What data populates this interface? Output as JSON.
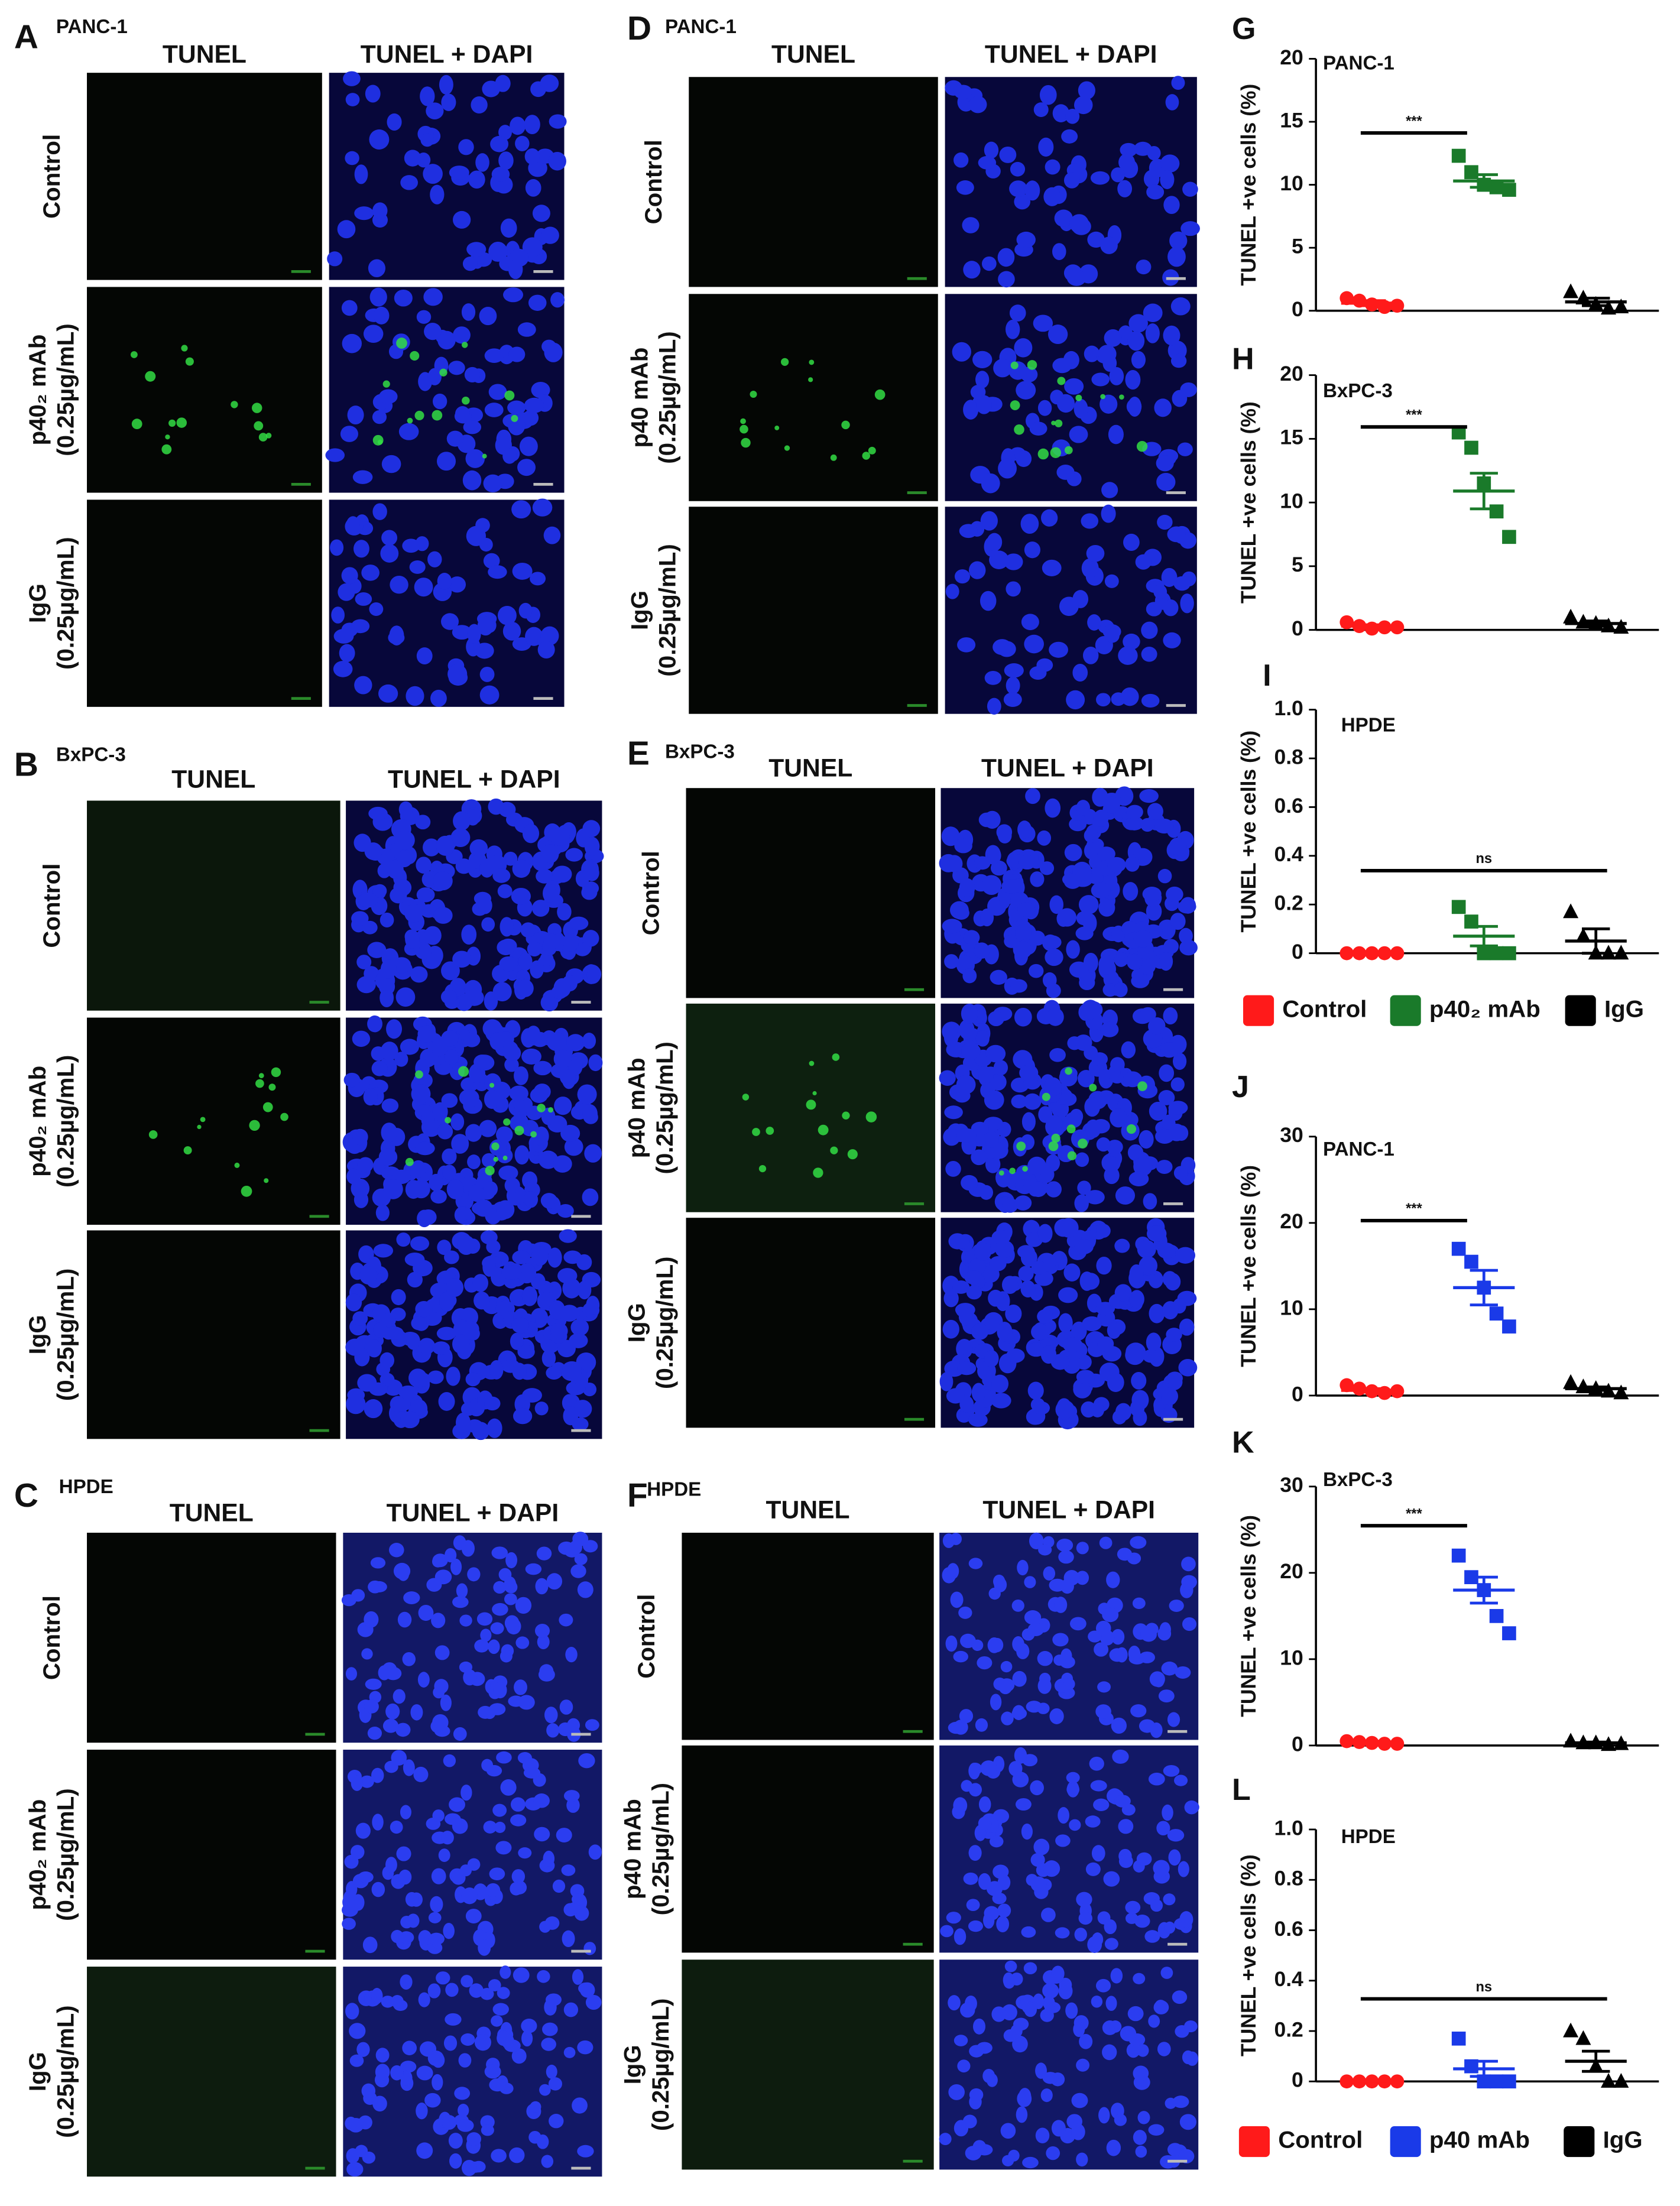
{
  "figure_panels": [
    {
      "letter": "A",
      "cell_line": "PANC-1",
      "columns": [
        "TUNEL",
        "TUNEL  + DAPI"
      ],
      "rows": [
        [
          "Control"
        ],
        [
          "p40₂ mAb",
          "(0.25µg/mL)"
        ],
        [
          "IgG",
          "(0.25µg/mL)"
        ]
      ]
    },
    {
      "letter": "B",
      "cell_line": "BxPC-3",
      "columns": [
        "TUNEL",
        "TUNEL  + DAPI"
      ],
      "rows": [
        [
          "Control"
        ],
        [
          "p40₂ mAb",
          "(0.25µg/mL)"
        ],
        [
          "IgG",
          "(0.25µg/mL)"
        ]
      ]
    },
    {
      "letter": "C",
      "cell_line": "HPDE",
      "columns": [
        "TUNEL",
        "TUNEL  + DAPI"
      ],
      "rows": [
        [
          "Control"
        ],
        [
          "p40₂ mAb",
          "(0.25µg/mL)"
        ],
        [
          "IgG",
          "(0.25µg/mL)"
        ]
      ]
    },
    {
      "letter": "D",
      "cell_line": "PANC-1",
      "columns": [
        "TUNEL",
        "TUNEL  + DAPI"
      ],
      "rows": [
        [
          "Control"
        ],
        [
          "p40 mAb",
          "(0.25µg/mL)"
        ],
        [
          "IgG",
          "(0.25µg/mL)"
        ]
      ]
    },
    {
      "letter": "E",
      "cell_line": "BxPC-3",
      "columns": [
        "TUNEL",
        "TUNEL  + DAPI"
      ],
      "rows": [
        [
          "Control"
        ],
        [
          "p40 mAb",
          "(0.25µg/mL)"
        ],
        [
          "IgG",
          "(0.25µg/mL)"
        ]
      ]
    },
    {
      "letter": "F",
      "cell_line": "HPDE",
      "columns": [
        "TUNEL",
        "TUNEL  + DAPI"
      ],
      "rows": [
        [
          "Control"
        ],
        [
          "p40 mAb",
          "(0.25µg/mL)"
        ],
        [
          "IgG",
          "(0.25µg/mL)"
        ]
      ]
    }
  ],
  "chart_data": [
    {
      "type": "scatter",
      "title": "G",
      "subtitle": "PANC-1",
      "ylabel": "TUNEL  +ve cells (%)",
      "ylim": [
        0,
        20
      ],
      "yticks": [
        0,
        5,
        10,
        15,
        20
      ],
      "annotation": "***",
      "series": [
        {
          "color": "#ff1a1a",
          "marker": "circle",
          "values": [
            1.0,
            0.8,
            0.5,
            0.3,
            0.4
          ],
          "mean": 0.6,
          "sem": 0.2
        },
        {
          "color": "#1a7a2a",
          "marker": "square",
          "values": [
            12.3,
            11.0,
            10.0,
            9.8,
            9.6
          ],
          "mean": 10.3,
          "sem": 0.5
        },
        {
          "color": "#000000",
          "marker": "triangle",
          "values": [
            1.5,
            1.0,
            0.5,
            0.2,
            0.3
          ],
          "mean": 0.7,
          "sem": 0.3
        }
      ]
    },
    {
      "type": "scatter",
      "title": "H",
      "subtitle": "BxPC-3",
      "ylabel": "TUNEL  +ve cells (%)",
      "ylim": [
        0,
        20
      ],
      "yticks": [
        0,
        5,
        10,
        15,
        20
      ],
      "annotation": "***",
      "series": [
        {
          "color": "#ff1a1a",
          "marker": "circle",
          "values": [
            0.6,
            0.3,
            0.1,
            0.2,
            0.2
          ],
          "mean": 0.3,
          "sem": 0.1
        },
        {
          "color": "#1a7a2a",
          "marker": "square",
          "values": [
            15.5,
            14.3,
            11.5,
            9.3,
            7.3
          ],
          "mean": 10.9,
          "sem": 1.4
        },
        {
          "color": "#000000",
          "marker": "triangle",
          "values": [
            1.0,
            0.6,
            0.5,
            0.3,
            0.2
          ],
          "mean": 0.5,
          "sem": 0.2
        }
      ]
    },
    {
      "type": "scatter",
      "title": "I",
      "subtitle": "HPDE",
      "ylabel": "TUNEL  +ve cells (%)",
      "ylim": [
        0,
        1
      ],
      "yticks": [
        0,
        0.2,
        0.4,
        0.6,
        0.8,
        {
          "value": 1,
          "label": "1.0"
        }
      ],
      "annotation": "ns",
      "series": [
        {
          "name": "Control",
          "color": "#ff1a1a",
          "marker": "circle",
          "values": [
            0,
            0,
            0,
            0,
            0
          ],
          "mean": 0,
          "sem": 0
        },
        {
          "name": "p40₂ mAb",
          "color": "#1a7a2a",
          "marker": "square",
          "values": [
            0.19,
            0.13,
            0,
            0,
            0
          ],
          "mean": 0.07,
          "sem": 0.04
        },
        {
          "name": "IgG",
          "color": "#000000",
          "marker": "triangle",
          "values": [
            0.17,
            0.07,
            0,
            0,
            0
          ],
          "mean": 0.05,
          "sem": 0.05
        }
      ]
    },
    {
      "type": "scatter",
      "title": "J",
      "subtitle": "PANC-1",
      "ylabel": "TUNEL  +ve cells (%)",
      "ylim": [
        0,
        30
      ],
      "yticks": [
        0,
        10,
        20,
        30
      ],
      "annotation": "***",
      "series": [
        {
          "color": "#ff1a1a",
          "marker": "circle",
          "values": [
            1.2,
            0.8,
            0.5,
            0.3,
            0.5
          ],
          "mean": 0.6,
          "sem": 0.2
        },
        {
          "color": "#1a3ae8",
          "marker": "square",
          "values": [
            17.0,
            15.5,
            12.5,
            9.5,
            8.0
          ],
          "mean": 12.5,
          "sem": 2.0
        },
        {
          "color": "#000000",
          "marker": "triangle",
          "values": [
            1.5,
            1.0,
            0.8,
            0.5,
            0.3
          ],
          "mean": 0.8,
          "sem": 0.2
        }
      ]
    },
    {
      "type": "scatter",
      "title": "K",
      "subtitle": "BxPC-3",
      "ylabel": "TUNEL  +ve cells (%)",
      "ylim": [
        0,
        30
      ],
      "yticks": [
        0,
        10,
        20,
        30
      ],
      "annotation": "***",
      "series": [
        {
          "color": "#ff1a1a",
          "marker": "circle",
          "values": [
            0.5,
            0.4,
            0.3,
            0.2,
            0.2
          ],
          "mean": 0.4,
          "sem": 0.1
        },
        {
          "color": "#1a3ae8",
          "marker": "square",
          "values": [
            22.0,
            19.5,
            18.0,
            15.0,
            13.0
          ],
          "mean": 18.0,
          "sem": 1.5
        },
        {
          "color": "#000000",
          "marker": "triangle",
          "values": [
            0.5,
            0.3,
            0.3,
            0.1,
            0.2
          ],
          "mean": 0.3,
          "sem": 0.1
        }
      ]
    },
    {
      "type": "scatter",
      "title": "L",
      "subtitle": "HPDE",
      "ylabel": "TUNEL  +ve cells (%)",
      "ylim": [
        0,
        1
      ],
      "yticks": [
        0,
        0.2,
        0.4,
        0.6,
        0.8,
        {
          "value": 1,
          "label": "1.0"
        }
      ],
      "annotation": "ns",
      "series": [
        {
          "name": "Control",
          "color": "#ff1a1a",
          "marker": "circle",
          "values": [
            0,
            0,
            0,
            0,
            0
          ],
          "mean": 0,
          "sem": 0
        },
        {
          "name": "p40 mAb",
          "color": "#1a3ae8",
          "marker": "square",
          "values": [
            0.17,
            0.06,
            0,
            0,
            0
          ],
          "mean": 0.05,
          "sem": 0.03
        },
        {
          "name": "IgG",
          "color": "#000000",
          "marker": "triangle",
          "values": [
            0.2,
            0.17,
            0.06,
            0,
            0
          ],
          "mean": 0.08,
          "sem": 0.04
        }
      ]
    }
  ]
}
